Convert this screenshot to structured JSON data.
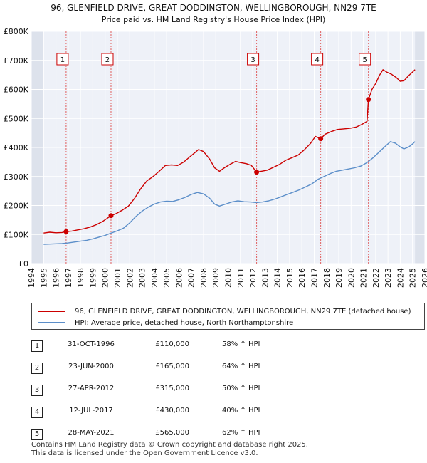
{
  "chart_data": {
    "type": "line",
    "title": "96, GLENFIELD DRIVE, GREAT DODDINGTON, WELLINGBOROUGH, NN29 7TE",
    "subtitle": "Price paid vs. HM Land Registry's House Price Index (HPI)",
    "xlim": [
      1994,
      2026
    ],
    "ylim": [
      0,
      800000
    ],
    "x_ticks": [
      "1994",
      "1995",
      "1996",
      "1997",
      "1998",
      "1999",
      "2000",
      "2001",
      "2002",
      "2003",
      "2004",
      "2005",
      "2006",
      "2007",
      "2008",
      "2009",
      "2010",
      "2011",
      "2012",
      "2013",
      "2014",
      "2015",
      "2016",
      "2017",
      "2018",
      "2019",
      "2020",
      "2021",
      "2022",
      "2023",
      "2024",
      "2025",
      "2026"
    ],
    "y_ticks": [
      {
        "value": 0,
        "label": "£0"
      },
      {
        "value": 100000,
        "label": "£100K"
      },
      {
        "value": 200000,
        "label": "£200K"
      },
      {
        "value": 300000,
        "label": "£300K"
      },
      {
        "value": 400000,
        "label": "£400K"
      },
      {
        "value": 500000,
        "label": "£500K"
      },
      {
        "value": 600000,
        "label": "£600K"
      },
      {
        "value": 700000,
        "label": "£700K"
      },
      {
        "value": 800000,
        "label": "£800K"
      }
    ],
    "data_range": [
      1995.0,
      2025.2
    ],
    "series": [
      {
        "name": "96, GLENFIELD DRIVE, GREAT DODDINGTON, WELLINGBOROUGH, NN29 7TE (detached house)",
        "color": "#cc0000",
        "points": [
          [
            1995.0,
            105000
          ],
          [
            1995.5,
            108000
          ],
          [
            1996.0,
            106000
          ],
          [
            1996.5,
            107000
          ],
          [
            1996.83,
            110000
          ],
          [
            1997.3,
            112000
          ],
          [
            1997.8,
            116000
          ],
          [
            1998.3,
            120000
          ],
          [
            1998.8,
            126000
          ],
          [
            1999.3,
            134000
          ],
          [
            1999.8,
            145000
          ],
          [
            2000.48,
            165000
          ],
          [
            2000.9,
            172000
          ],
          [
            2001.4,
            184000
          ],
          [
            2001.9,
            198000
          ],
          [
            2002.4,
            225000
          ],
          [
            2002.9,
            258000
          ],
          [
            2003.4,
            285000
          ],
          [
            2003.9,
            300000
          ],
          [
            2004.4,
            318000
          ],
          [
            2004.9,
            338000
          ],
          [
            2005.4,
            340000
          ],
          [
            2005.9,
            338000
          ],
          [
            2006.4,
            350000
          ],
          [
            2006.9,
            368000
          ],
          [
            2007.3,
            382000
          ],
          [
            2007.6,
            393000
          ],
          [
            2008.0,
            386000
          ],
          [
            2008.5,
            360000
          ],
          [
            2008.9,
            330000
          ],
          [
            2009.3,
            318000
          ],
          [
            2009.7,
            330000
          ],
          [
            2010.2,
            343000
          ],
          [
            2010.6,
            352000
          ],
          [
            2011.0,
            348000
          ],
          [
            2011.5,
            344000
          ],
          [
            2011.9,
            338000
          ],
          [
            2012.32,
            315000
          ],
          [
            2012.7,
            318000
          ],
          [
            2013.2,
            322000
          ],
          [
            2013.7,
            332000
          ],
          [
            2014.2,
            342000
          ],
          [
            2014.7,
            356000
          ],
          [
            2015.2,
            365000
          ],
          [
            2015.7,
            374000
          ],
          [
            2016.2,
            392000
          ],
          [
            2016.7,
            414000
          ],
          [
            2017.1,
            438000
          ],
          [
            2017.53,
            430000
          ],
          [
            2017.9,
            446000
          ],
          [
            2018.4,
            455000
          ],
          [
            2018.9,
            462000
          ],
          [
            2019.4,
            464000
          ],
          [
            2019.9,
            466000
          ],
          [
            2020.4,
            470000
          ],
          [
            2020.9,
            480000
          ],
          [
            2021.3,
            490000
          ],
          [
            2021.41,
            565000
          ],
          [
            2021.7,
            600000
          ],
          [
            2022.0,
            620000
          ],
          [
            2022.3,
            648000
          ],
          [
            2022.6,
            668000
          ],
          [
            2022.9,
            660000
          ],
          [
            2023.3,
            652000
          ],
          [
            2023.7,
            640000
          ],
          [
            2024.0,
            628000
          ],
          [
            2024.3,
            630000
          ],
          [
            2024.7,
            648000
          ],
          [
            2025.0,
            660000
          ],
          [
            2025.2,
            668000
          ]
        ]
      },
      {
        "name": "HPI: Average price, detached house, North Northamptonshire",
        "color": "#5b8ec9",
        "points": [
          [
            1995.0,
            66000
          ],
          [
            1995.5,
            67000
          ],
          [
            1996.0,
            68000
          ],
          [
            1996.5,
            69000
          ],
          [
            1997.0,
            71000
          ],
          [
            1997.5,
            74000
          ],
          [
            1998.0,
            77000
          ],
          [
            1998.5,
            80000
          ],
          [
            1999.0,
            85000
          ],
          [
            1999.5,
            91000
          ],
          [
            2000.0,
            97000
          ],
          [
            2000.5,
            105000
          ],
          [
            2001.0,
            113000
          ],
          [
            2001.5,
            122000
          ],
          [
            2002.0,
            140000
          ],
          [
            2002.5,
            162000
          ],
          [
            2003.0,
            180000
          ],
          [
            2003.5,
            194000
          ],
          [
            2004.0,
            205000
          ],
          [
            2004.5,
            212000
          ],
          [
            2005.0,
            215000
          ],
          [
            2005.5,
            214000
          ],
          [
            2006.0,
            220000
          ],
          [
            2006.5,
            228000
          ],
          [
            2007.0,
            238000
          ],
          [
            2007.5,
            245000
          ],
          [
            2008.0,
            240000
          ],
          [
            2008.5,
            225000
          ],
          [
            2008.9,
            205000
          ],
          [
            2009.3,
            198000
          ],
          [
            2009.8,
            205000
          ],
          [
            2010.3,
            212000
          ],
          [
            2010.8,
            216000
          ],
          [
            2011.3,
            213000
          ],
          [
            2011.8,
            212000
          ],
          [
            2012.3,
            210000
          ],
          [
            2012.8,
            212000
          ],
          [
            2013.3,
            216000
          ],
          [
            2013.8,
            222000
          ],
          [
            2014.3,
            230000
          ],
          [
            2014.8,
            238000
          ],
          [
            2015.3,
            246000
          ],
          [
            2015.8,
            254000
          ],
          [
            2016.3,
            264000
          ],
          [
            2016.8,
            274000
          ],
          [
            2017.3,
            290000
          ],
          [
            2017.8,
            300000
          ],
          [
            2018.3,
            310000
          ],
          [
            2018.8,
            318000
          ],
          [
            2019.3,
            322000
          ],
          [
            2019.8,
            326000
          ],
          [
            2020.3,
            330000
          ],
          [
            2020.8,
            336000
          ],
          [
            2021.3,
            348000
          ],
          [
            2021.8,
            365000
          ],
          [
            2022.3,
            385000
          ],
          [
            2022.8,
            405000
          ],
          [
            2023.2,
            420000
          ],
          [
            2023.6,
            415000
          ],
          [
            2024.0,
            402000
          ],
          [
            2024.3,
            395000
          ],
          [
            2024.7,
            402000
          ],
          [
            2025.0,
            412000
          ],
          [
            2025.2,
            420000
          ]
        ]
      }
    ],
    "sales": [
      {
        "label": "1",
        "x": 1996.83,
        "y": 110000
      },
      {
        "label": "2",
        "x": 2000.48,
        "y": 165000
      },
      {
        "label": "3",
        "x": 2012.32,
        "y": 315000
      },
      {
        "label": "4",
        "x": 2017.53,
        "y": 430000
      },
      {
        "label": "5",
        "x": 2021.41,
        "y": 565000
      }
    ]
  },
  "legend": [
    {
      "label": "96, GLENFIELD DRIVE, GREAT DODDINGTON, WELLINGBOROUGH, NN29 7TE (detached house)",
      "color": "#cc0000"
    },
    {
      "label": "HPI: Average price, detached house, North Northamptonshire",
      "color": "#5b8ec9"
    }
  ],
  "transactions": [
    {
      "num": "1",
      "date": "31-OCT-1996",
      "price": "£110,000",
      "hpi": "58% ↑ HPI"
    },
    {
      "num": "2",
      "date": "23-JUN-2000",
      "price": "£165,000",
      "hpi": "64% ↑ HPI"
    },
    {
      "num": "3",
      "date": "27-APR-2012",
      "price": "£315,000",
      "hpi": "50% ↑ HPI"
    },
    {
      "num": "4",
      "date": "12-JUL-2017",
      "price": "£430,000",
      "hpi": "40% ↑ HPI"
    },
    {
      "num": "5",
      "date": "28-MAY-2021",
      "price": "£565,000",
      "hpi": "62% ↑ HPI"
    }
  ],
  "footer": {
    "line1": "Contains HM Land Registry data © Crown copyright and database right 2025.",
    "line2": "This data is licensed under the Open Government Licence v3.0."
  }
}
